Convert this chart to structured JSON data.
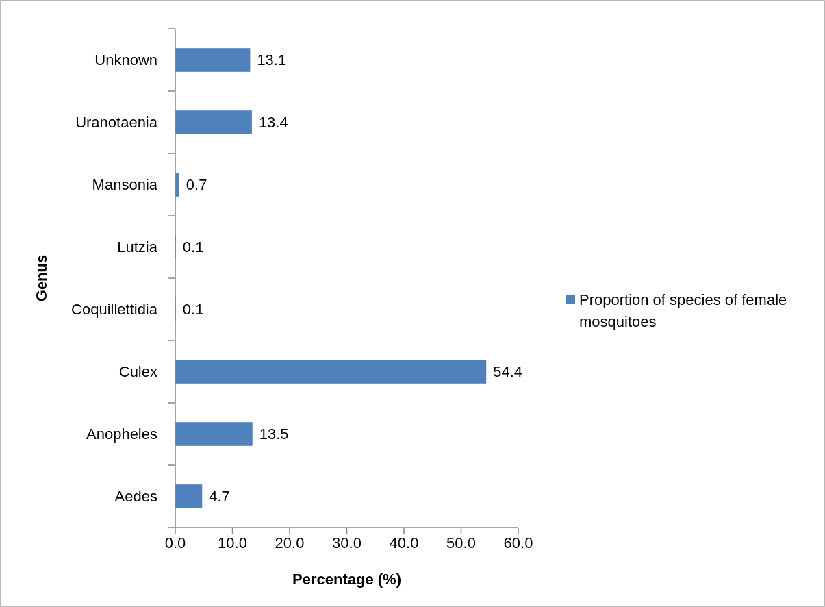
{
  "chart_data": {
    "type": "bar",
    "orientation": "horizontal",
    "xlabel": "Percentage (%)",
    "ylabel": "Genus",
    "categories": [
      "Unknown",
      "Uranotaenia",
      "Mansonia",
      "Lutzia",
      "Coquillettidia",
      "Culex",
      "Anopheles",
      "Aedes"
    ],
    "series": [
      {
        "name": "Proportion of species of female mosquitoes",
        "color": "#4f81bd",
        "values": [
          13.1,
          13.4,
          0.7,
          0.1,
          0.1,
          54.4,
          13.5,
          4.7
        ]
      }
    ],
    "xlim": [
      0,
      60
    ],
    "xticks": [
      {
        "value": 0,
        "label": "0.0"
      },
      {
        "value": 10,
        "label": "10.0"
      },
      {
        "value": 20,
        "label": "20.0"
      },
      {
        "value": 30,
        "label": "30.0"
      },
      {
        "value": 40,
        "label": "40.0"
      },
      {
        "value": 50,
        "label": "50.0"
      },
      {
        "value": 60,
        "label": "60.0"
      }
    ],
    "data_labels": true,
    "legend": "right",
    "grid": false
  }
}
